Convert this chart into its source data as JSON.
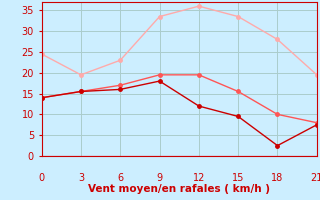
{
  "xlabel": "Vent moyen/en rafales ( km/h )",
  "background_color": "#cceeff",
  "grid_color": "#aacccc",
  "x_values": [
    0,
    3,
    6,
    9,
    12,
    15,
    18,
    21
  ],
  "line1": {
    "y": [
      24.5,
      19.5,
      23,
      33.5,
      36,
      33.5,
      28,
      19.5
    ],
    "color": "#ffaaaa",
    "marker": "o",
    "markersize": 2.5,
    "linewidth": 1.0
  },
  "line2": {
    "y": [
      14,
      15.5,
      17,
      19.5,
      19.5,
      15.5,
      10,
      8
    ],
    "color": "#ff5555",
    "marker": "o",
    "markersize": 2.5,
    "linewidth": 1.0
  },
  "line3": {
    "y": [
      14,
      15.5,
      16,
      18,
      12,
      9.5,
      2.5,
      7.5
    ],
    "color": "#cc0000",
    "marker": "o",
    "markersize": 2.5,
    "linewidth": 1.0
  },
  "xlim": [
    0,
    21
  ],
  "ylim": [
    0,
    37
  ],
  "xticks": [
    0,
    3,
    6,
    9,
    12,
    15,
    18,
    21
  ],
  "yticks": [
    0,
    5,
    10,
    15,
    20,
    25,
    30,
    35
  ],
  "tick_color": "#cc0000",
  "label_color": "#cc0000",
  "axis_color": "#cc0000",
  "xlabel_fontsize": 7.5,
  "tick_fontsize": 7
}
